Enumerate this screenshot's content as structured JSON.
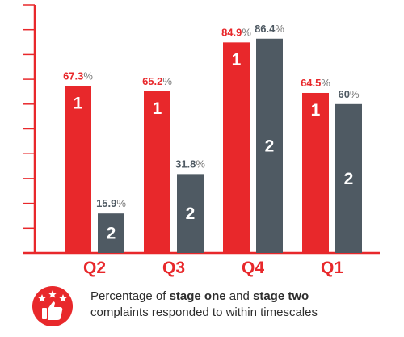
{
  "chart_data": {
    "type": "bar",
    "categories": [
      "Q2",
      "Q3",
      "Q4",
      "Q1"
    ],
    "series": [
      {
        "values": [
          67.3,
          65.2,
          84.9,
          64.5
        ],
        "value_labels": [
          "67.3",
          "65.2",
          "84.9",
          "64.5"
        ],
        "bar_text": "1",
        "color": "#e8282b"
      },
      {
        "values": [
          15.9,
          31.8,
          86.4,
          60
        ],
        "value_labels": [
          "15.9",
          "31.8",
          "86.4",
          "60"
        ],
        "bar_text": "2",
        "color": "#4f5a63"
      }
    ],
    "value_suffix": "%",
    "ylim": [
      0,
      100
    ],
    "axis_color": "#e8282b",
    "label_colors": {
      "series1": "#e8282b",
      "series2": "#4f5a63",
      "suffix": "#777777"
    }
  },
  "legend": {
    "icon": "thumbs-up-stars-icon",
    "text_parts": [
      {
        "text": "Percentage of ",
        "bold": false
      },
      {
        "text": "stage one",
        "bold": true
      },
      {
        "text": " and ",
        "bold": false
      },
      {
        "text": "stage two",
        "bold": true
      },
      {
        "text": "\ncomplaints responded to within timescales",
        "bold": false
      }
    ]
  }
}
